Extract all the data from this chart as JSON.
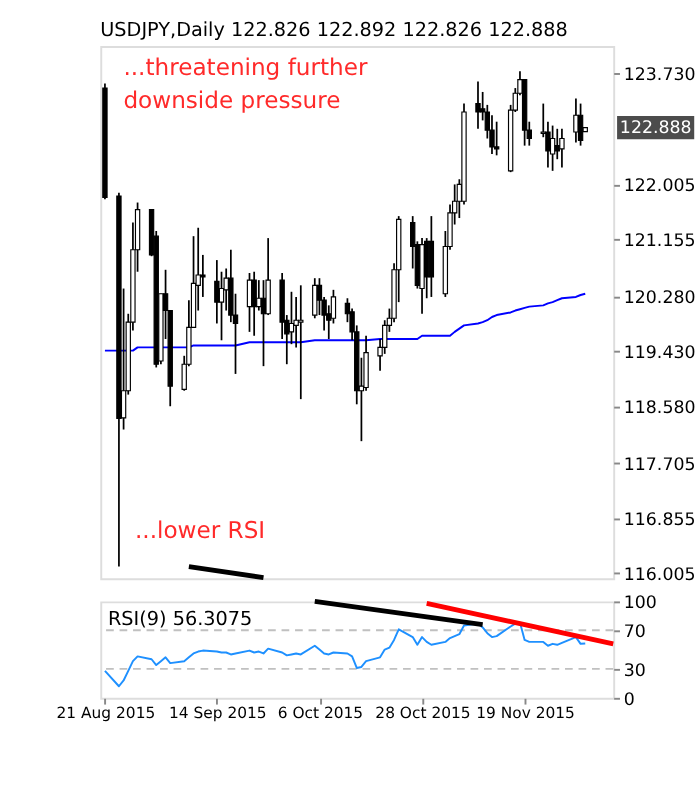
{
  "chart_data": [
    {
      "type": "candlestick",
      "title": "USDJPY,Daily 122.826 122.892 122.826 122.888",
      "annotations": [
        "...threatening further\ndownside pressure",
        "...lower RSI",
        {
          "text": "122.888",
          "x": "2015-12-02",
          "y": 122.888
        }
      ],
      "xlim": [
        "2015-08-20",
        "2015-12-08"
      ],
      "xticks": [
        {
          "value": "2015-08-21",
          "label": null
        },
        {
          "value": "2015-09-14",
          "label": null
        },
        {
          "value": "2015-10-06",
          "label": null
        },
        {
          "value": "2015-10-28",
          "label": null
        },
        {
          "value": "2015-11-19",
          "label": null
        }
      ],
      "x": [
        "2015-08-21",
        "2015-08-24",
        "2015-08-25",
        "2015-08-26",
        "2015-08-27",
        "2015-08-28",
        "2015-08-31",
        "2015-09-01",
        "2015-09-02",
        "2015-09-03",
        "2015-09-04",
        "2015-09-07",
        "2015-09-08",
        "2015-09-09",
        "2015-09-10",
        "2015-09-11",
        "2015-09-14",
        "2015-09-15",
        "2015-09-16",
        "2015-09-17",
        "2015-09-18",
        "2015-09-21",
        "2015-09-22",
        "2015-09-23",
        "2015-09-24",
        "2015-09-25",
        "2015-09-28",
        "2015-09-29",
        "2015-09-30",
        "2015-10-01",
        "2015-10-02",
        "2015-10-05",
        "2015-10-06",
        "2015-10-07",
        "2015-10-08",
        "2015-10-09",
        "2015-10-12",
        "2015-10-13",
        "2015-10-14",
        "2015-10-15",
        "2015-10-16",
        "2015-10-19",
        "2015-10-20",
        "2015-10-21",
        "2015-10-22",
        "2015-10-23",
        "2015-10-26",
        "2015-10-27",
        "2015-10-28",
        "2015-10-29",
        "2015-10-30",
        "2015-11-02",
        "2015-11-03",
        "2015-11-04",
        "2015-11-05",
        "2015-11-06",
        "2015-11-09",
        "2015-11-10",
        "2015-11-11",
        "2015-11-12",
        "2015-11-13",
        "2015-11-16",
        "2015-11-17",
        "2015-11-18",
        "2015-11-19",
        "2015-11-20",
        "2015-11-23",
        "2015-11-24",
        "2015-11-25",
        "2015-11-26",
        "2015-11-27",
        "2015-11-30",
        "2015-12-01",
        "2015-12-02"
      ],
      "series": [
        {
          "type": "line",
          "color": "#0000ff",
          "values": [
            119.44,
            119.44,
            119.44,
            119.44,
            119.44,
            119.49,
            119.49,
            119.49,
            119.49,
            119.49,
            119.49,
            119.49,
            119.49,
            119.52,
            119.52,
            119.52,
            119.52,
            119.52,
            119.52,
            119.52,
            119.52,
            119.57,
            119.57,
            119.57,
            119.57,
            119.57,
            119.57,
            119.57,
            119.57,
            119.57,
            119.57,
            119.6,
            119.6,
            119.6,
            119.6,
            119.6,
            119.6,
            119.6,
            119.6,
            119.6,
            119.6,
            119.62,
            119.62,
            119.62,
            119.62,
            119.62,
            119.62,
            119.62,
            119.67,
            119.67,
            119.67,
            119.67,
            119.67,
            119.73,
            119.78,
            119.83,
            119.86,
            119.88,
            119.91,
            119.96,
            119.99,
            120.03,
            120.06,
            120.08,
            120.1,
            120.12,
            120.14,
            120.17,
            120.19,
            120.22,
            120.25,
            120.27,
            120.3,
            120.32
          ]
        },
        {
          "type": "line",
          "color": "#000000",
          "x": [
            "2015-09-08",
            "2015-09-24"
          ],
          "values": [
            116.1,
            115.93
          ]
        },
        {
          "color": "#000000",
          "ohlc": [
            [
              123.5,
              123.57,
              121.78,
              121.81
            ],
            [
              121.83,
              121.88,
              116.1,
              118.39
            ],
            [
              118.4,
              120.4,
              118.22,
              118.82
            ],
            [
              118.82,
              120.01,
              118.76,
              119.88
            ],
            [
              119.88,
              121.42,
              119.75,
              121.0
            ],
            [
              121.0,
              121.73,
              120.66,
              121.62
            ],
            [
              121.62,
              121.62,
              120.9,
              120.92
            ],
            [
              121.21,
              121.29,
              119.18,
              119.23
            ],
            [
              119.28,
              120.32,
              119.23,
              120.32
            ],
            [
              120.32,
              120.69,
              119.62,
              120.06
            ],
            [
              120.06,
              120.06,
              118.58,
              118.89
            ],
            [
              118.84,
              119.36,
              118.82,
              119.23
            ],
            [
              119.23,
              120.22,
              119.2,
              119.8
            ],
            [
              119.8,
              121.21,
              119.8,
              120.48
            ],
            [
              120.45,
              121.34,
              120.06,
              120.61
            ],
            [
              120.61,
              120.92,
              120.27,
              120.58
            ],
            [
              120.51,
              120.84,
              119.86,
              120.19
            ],
            [
              120.19,
              120.66,
              119.6,
              120.4
            ],
            [
              120.38,
              120.71,
              120.06,
              120.56
            ],
            [
              120.56,
              121.0,
              119.88,
              119.99
            ],
            [
              119.99,
              120.32,
              119.08,
              119.86
            ],
            [
              120.12,
              120.64,
              119.73,
              120.53
            ],
            [
              120.53,
              120.66,
              119.67,
              120.12
            ],
            [
              120.12,
              120.53,
              120.06,
              120.25
            ],
            [
              120.25,
              120.53,
              119.2,
              120.01
            ],
            [
              120.01,
              121.18,
              119.99,
              120.53
            ],
            [
              120.53,
              120.64,
              119.62,
              119.88
            ],
            [
              119.91,
              119.99,
              119.23,
              119.7
            ],
            [
              119.73,
              120.35,
              119.54,
              119.86
            ],
            [
              119.83,
              120.27,
              119.49,
              119.91
            ],
            [
              119.88,
              120.45,
              118.69,
              119.91
            ],
            [
              119.99,
              120.56,
              119.94,
              120.45
            ],
            [
              120.45,
              120.56,
              119.99,
              120.22
            ],
            [
              120.22,
              120.27,
              119.75,
              119.99
            ],
            [
              120.01,
              120.14,
              119.62,
              119.91
            ],
            [
              119.94,
              120.38,
              119.86,
              120.27
            ],
            [
              120.17,
              120.25,
              119.88,
              120.01
            ],
            [
              120.04,
              120.09,
              119.6,
              119.73
            ],
            [
              119.73,
              119.83,
              118.61,
              118.82
            ],
            [
              118.82,
              119.33,
              118.04,
              118.89
            ],
            [
              118.87,
              119.67,
              118.82,
              119.41
            ],
            [
              119.36,
              119.62,
              119.13,
              119.49
            ],
            [
              119.49,
              119.91,
              119.39,
              119.83
            ],
            [
              119.83,
              120.09,
              119.73,
              119.94
            ],
            [
              119.94,
              120.79,
              119.88,
              120.69
            ],
            [
              120.69,
              121.52,
              120.19,
              121.47
            ],
            [
              121.42,
              121.52,
              120.71,
              121.05
            ],
            [
              121.08,
              121.13,
              120.4,
              120.45
            ],
            [
              120.4,
              121.18,
              120.01,
              121.08
            ],
            [
              121.13,
              121.18,
              120.25,
              120.58
            ],
            [
              121.13,
              121.52,
              120.27,
              120.58
            ],
            [
              120.32,
              121.29,
              120.27,
              121.05
            ],
            [
              121.05,
              121.7,
              121.0,
              121.57
            ],
            [
              121.57,
              122.01,
              121.39,
              121.75
            ],
            [
              121.75,
              122.09,
              121.49,
              122.01
            ],
            [
              121.75,
              123.26,
              121.7,
              123.13
            ],
            [
              123.26,
              123.6,
              122.87,
              123.13
            ],
            [
              123.18,
              123.44,
              123.0,
              123.13
            ],
            [
              123.13,
              123.24,
              122.72,
              122.85
            ],
            [
              122.85,
              123.08,
              122.48,
              122.59
            ],
            [
              122.59,
              122.98,
              122.46,
              122.56
            ],
            [
              122.22,
              123.24,
              122.2,
              123.16
            ],
            [
              123.16,
              123.5,
              123.13,
              123.42
            ],
            [
              123.42,
              123.76,
              123.39,
              123.63
            ],
            [
              123.63,
              123.63,
              122.61,
              122.85
            ],
            [
              122.85,
              122.98,
              122.61,
              122.72
            ],
            [
              122.8,
              123.26,
              122.74,
              122.82
            ],
            [
              122.82,
              122.98,
              122.27,
              122.53
            ],
            [
              122.48,
              122.92,
              122.22,
              122.72
            ],
            [
              122.61,
              122.87,
              122.4,
              122.53
            ],
            [
              122.56,
              122.87,
              122.27,
              122.72
            ],
            [
              122.82,
              123.34,
              122.66,
              123.08
            ],
            [
              123.08,
              123.26,
              122.61,
              122.69
            ],
            [
              122.826,
              122.892,
              122.826,
              122.888
            ]
          ]
        }
      ],
      "ylim": [
        115.92,
        124.15
      ],
      "yticks": [
        {
          "value": 123.73,
          "label": "123.730"
        },
        {
          "value": 122.005,
          "label": "122.005"
        },
        {
          "value": 121.155,
          "label": "121.155"
        },
        {
          "value": 120.28,
          "label": "120.280"
        },
        {
          "value": 119.43,
          "label": "119.430"
        },
        {
          "value": 118.58,
          "label": "118.580"
        },
        {
          "value": 117.705,
          "label": "117.705"
        },
        {
          "value": 116.855,
          "label": "116.855"
        },
        {
          "value": 116.005,
          "label": "116.005"
        }
      ],
      "tick_labels": "y"
    },
    {
      "type": "line",
      "title": "RSI(9) 56.3075",
      "x": [
        "2015-08-21",
        "2015-08-24",
        "2015-08-25",
        "2015-08-26",
        "2015-08-27",
        "2015-08-28",
        "2015-08-31",
        "2015-09-01",
        "2015-09-02",
        "2015-09-03",
        "2015-09-04",
        "2015-09-07",
        "2015-09-08",
        "2015-09-09",
        "2015-09-10",
        "2015-09-11",
        "2015-09-14",
        "2015-09-15",
        "2015-09-16",
        "2015-09-17",
        "2015-09-18",
        "2015-09-21",
        "2015-09-22",
        "2015-09-23",
        "2015-09-24",
        "2015-09-25",
        "2015-09-28",
        "2015-09-29",
        "2015-09-30",
        "2015-10-01",
        "2015-10-02",
        "2015-10-05",
        "2015-10-06",
        "2015-10-07",
        "2015-10-08",
        "2015-10-09",
        "2015-10-12",
        "2015-10-13",
        "2015-10-14",
        "2015-10-15",
        "2015-10-16",
        "2015-10-19",
        "2015-10-20",
        "2015-10-21",
        "2015-10-22",
        "2015-10-23",
        "2015-10-26",
        "2015-10-27",
        "2015-10-28",
        "2015-10-29",
        "2015-10-30",
        "2015-11-02",
        "2015-11-03",
        "2015-11-04",
        "2015-11-05",
        "2015-11-06",
        "2015-11-09",
        "2015-11-10",
        "2015-11-11",
        "2015-11-12",
        "2015-11-13",
        "2015-11-16",
        "2015-11-17",
        "2015-11-18",
        "2015-11-19",
        "2015-11-20",
        "2015-11-23",
        "2015-11-24",
        "2015-11-25",
        "2015-11-26",
        "2015-11-27",
        "2015-11-30",
        "2015-12-01",
        "2015-12-02"
      ],
      "series": [
        {
          "color": "#1e90ff",
          "values": [
            28,
            12,
            18,
            28,
            38,
            43,
            40,
            34,
            38,
            42,
            36,
            38,
            42,
            46,
            48,
            49,
            48,
            47,
            47,
            45,
            46,
            49,
            47,
            48,
            46,
            51,
            47,
            44,
            45,
            46,
            45,
            54,
            50,
            46,
            45,
            47,
            46,
            43,
            31,
            32,
            38,
            42,
            50,
            52,
            60,
            71,
            63,
            55,
            63,
            58,
            55,
            58,
            62,
            64,
            66,
            75,
            77,
            73,
            67,
            63,
            64,
            74,
            77,
            78,
            60,
            58,
            58,
            54,
            56,
            55,
            57,
            63,
            56,
            56.3075
          ]
        },
        {
          "type": "line",
          "color": "#000000",
          "x": [
            "2015-10-05",
            "2015-11-10"
          ],
          "values": [
            100,
            76
          ]
        },
        {
          "type": "line",
          "color": "#ff0000",
          "x": [
            "2015-10-29",
            "2015-12-08"
          ],
          "values": [
            98,
            56
          ]
        }
      ],
      "ylim": [
        0,
        100
      ],
      "yticks": [
        100,
        70,
        30,
        0
      ],
      "xlim": [
        "2015-08-20",
        "2015-12-08"
      ],
      "xticks": [
        {
          "value": "2015-08-21",
          "label": "21 Aug 2015"
        },
        {
          "value": "2015-09-14",
          "label": "14 Sep 2015"
        },
        {
          "value": "2015-10-06",
          "label": "6 Oct 2015"
        },
        {
          "value": "2015-10-28",
          "label": "28 Oct 2015"
        },
        {
          "value": "2015-11-19",
          "label": "19 Nov 2015"
        }
      ],
      "ref_lines": [
        {
          "axis": "y",
          "value": 70,
          "color": "#c0c0c0",
          "line_style": "dashed"
        },
        {
          "axis": "y",
          "value": 30,
          "color": "#c0c0c0",
          "line_style": "dashed"
        }
      ]
    }
  ]
}
